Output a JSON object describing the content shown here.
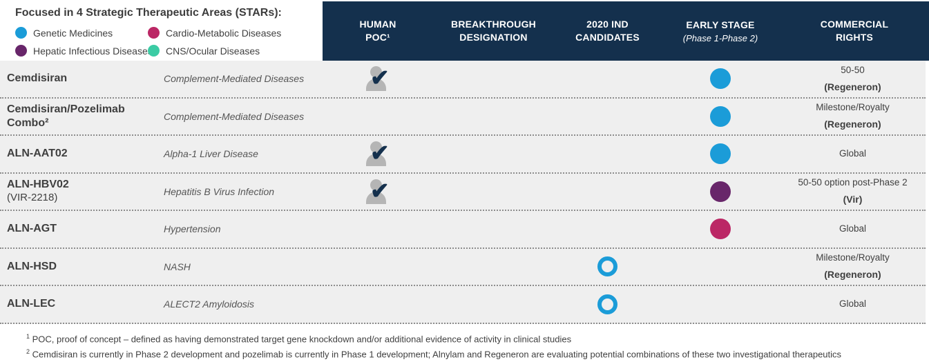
{
  "legend": {
    "title": "Focused in 4 Strategic Therapeutic Areas (STARs):",
    "items": [
      {
        "label": "Genetic Medicines",
        "color": "#1B9CD8"
      },
      {
        "label": "Cardio-Metabolic Diseases",
        "color": "#BB2765"
      },
      {
        "label": "Hepatic Infectious Diseases",
        "color": "#68266A"
      },
      {
        "label": "CNS/Ocular Diseases",
        "color": "#3BCBA4"
      }
    ]
  },
  "header": {
    "bg_color": "#14304D",
    "text_color": "#FFFFFF",
    "columns": [
      {
        "lines": [
          "HUMAN",
          "POC¹"
        ]
      },
      {
        "lines": [
          "BREAKTHROUGH",
          "DESIGNATION"
        ]
      },
      {
        "lines": [
          "2020 IND",
          "CANDIDATES"
        ]
      },
      {
        "lines": [
          "EARLY STAGE"
        ],
        "sub": "(Phase 1-Phase 2)"
      },
      {
        "lines": [
          "COMMERCIAL",
          "RIGHTS"
        ]
      }
    ]
  },
  "icons": {
    "human_poc": "person-with-checkmark",
    "ind_2020": "open-circle-outline",
    "early_stage": "filled-circle"
  },
  "table": {
    "row_bg": "#EFEFEF",
    "rows": [
      {
        "name": "Cemdisiran",
        "alias": "",
        "disease": "Complement-Mediated Diseases",
        "human_poc": true,
        "breakthrough_designation": false,
        "ind_2020_candidate": false,
        "early_stage": {
          "area": "Genetic Medicines",
          "color": "#1B9CD8"
        },
        "commercial_rights": {
          "terms": "50-50",
          "partner": "(Regeneron)"
        }
      },
      {
        "name": "Cemdisiran/Pozelimab Combo²",
        "alias": "",
        "disease": "Complement-Mediated Diseases",
        "human_poc": false,
        "breakthrough_designation": false,
        "ind_2020_candidate": false,
        "early_stage": {
          "area": "Genetic Medicines",
          "color": "#1B9CD8"
        },
        "commercial_rights": {
          "terms": "Milestone/Royalty",
          "partner": "(Regeneron)"
        }
      },
      {
        "name": "ALN-AAT02",
        "alias": "",
        "disease": "Alpha-1 Liver Disease",
        "human_poc": true,
        "breakthrough_designation": false,
        "ind_2020_candidate": false,
        "early_stage": {
          "area": "Genetic Medicines",
          "color": "#1B9CD8"
        },
        "commercial_rights": {
          "terms": "Global",
          "partner": ""
        }
      },
      {
        "name": "ALN-HBV02",
        "alias": "(VIR-2218)",
        "disease": "Hepatitis B Virus Infection",
        "human_poc": true,
        "breakthrough_designation": false,
        "ind_2020_candidate": false,
        "early_stage": {
          "area": "Hepatic Infectious Diseases",
          "color": "#68266A"
        },
        "commercial_rights": {
          "terms": "50-50 option post-Phase 2",
          "partner": "(Vir)"
        }
      },
      {
        "name": "ALN-AGT",
        "alias": "",
        "disease": "Hypertension",
        "human_poc": false,
        "breakthrough_designation": false,
        "ind_2020_candidate": false,
        "early_stage": {
          "area": "Cardio-Metabolic Diseases",
          "color": "#BB2765"
        },
        "commercial_rights": {
          "terms": "Global",
          "partner": ""
        }
      },
      {
        "name": "ALN-HSD",
        "alias": "",
        "disease": "NASH",
        "human_poc": false,
        "breakthrough_designation": false,
        "ind_2020_candidate": true,
        "early_stage": null,
        "commercial_rights": {
          "terms": "Milestone/Royalty",
          "partner": "(Regeneron)"
        }
      },
      {
        "name": "ALN-LEC",
        "alias": "",
        "disease": "ALECT2 Amyloidosis",
        "human_poc": false,
        "breakthrough_designation": false,
        "ind_2020_candidate": true,
        "early_stage": null,
        "commercial_rights": {
          "terms": "Global",
          "partner": ""
        }
      }
    ]
  },
  "footnotes": [
    {
      "sup": "1",
      "text": "POC, proof of concept – defined as having demonstrated target gene knockdown and/or additional evidence of activity in clinical studies"
    },
    {
      "sup": "2",
      "text": "Cemdisiran is currently in Phase 2 development and pozelimab is currently in Phase 1 development; Alnylam and Regeneron are evaluating potential combinations of these two investigational therapeutics"
    }
  ],
  "colors": {
    "header_navy": "#14304D",
    "row_gray": "#EFEFEF",
    "genetic_blue": "#1B9CD8",
    "cardio_magenta": "#BB2765",
    "hepatic_purple": "#68266A",
    "cns_teal": "#3BCBA4",
    "icon_gray": "#B5B5B5",
    "text_dark": "#3F3F3F"
  }
}
